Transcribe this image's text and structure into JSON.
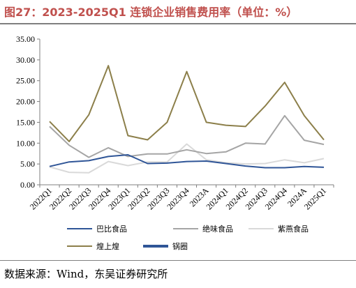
{
  "title": "图27：2023-2025Q1 连锁企业销售费用率（单位：%）",
  "source": "数据来源：Wind，东吴证券研究所",
  "chart_data": {
    "type": "line",
    "categories": [
      "2022Q1",
      "2022Q2",
      "2022Q3",
      "2022Q4",
      "2023Q1",
      "2023Q2",
      "2023Q3",
      "2023Q4",
      "2023A",
      "2024Q1",
      "2024Q2",
      "2024Q3",
      "2024Q4",
      "2024A",
      "2025Q1"
    ],
    "ylim": [
      0,
      35
    ],
    "yticks": [
      "0.00",
      "5.00",
      "10.00",
      "15.00",
      "20.00",
      "25.00",
      "30.00",
      "35.00"
    ],
    "grid": false,
    "legend_position": "bottom",
    "series": [
      {
        "name": "巴比食品",
        "color": "#2f5597",
        "values": [
          4.4,
          5.5,
          5.8,
          6.8,
          7.2,
          5.1,
          5.2,
          5.6,
          5.7,
          5.1,
          4.5,
          4.1,
          4.1,
          4.4,
          4.2
        ]
      },
      {
        "name": "绝味食品",
        "color": "#a5a5a5",
        "values": [
          14.0,
          9.5,
          6.6,
          8.9,
          6.8,
          7.4,
          7.4,
          8.4,
          7.5,
          7.9,
          10.0,
          9.8,
          16.6,
          10.7,
          9.7
        ]
      },
      {
        "name": "紫燕食品",
        "color": "#d9d9d9",
        "values": [
          4.3,
          3.0,
          2.9,
          5.6,
          4.6,
          5.5,
          5.5,
          9.8,
          6.0,
          5.3,
          5.0,
          5.1,
          6.0,
          5.3,
          6.3
        ]
      },
      {
        "name": "煌上煌",
        "color": "#8c7f4a",
        "values": [
          15.2,
          10.4,
          16.8,
          28.6,
          11.8,
          10.8,
          15.0,
          27.2,
          15.0,
          14.3,
          14.0,
          18.9,
          24.6,
          16.6,
          10.8
        ]
      },
      {
        "name": "锅圈",
        "color": "#2f5597",
        "values": [
          null,
          null,
          null,
          null,
          null,
          null,
          null,
          null,
          null,
          null,
          null,
          null,
          null,
          null,
          null
        ]
      }
    ]
  }
}
